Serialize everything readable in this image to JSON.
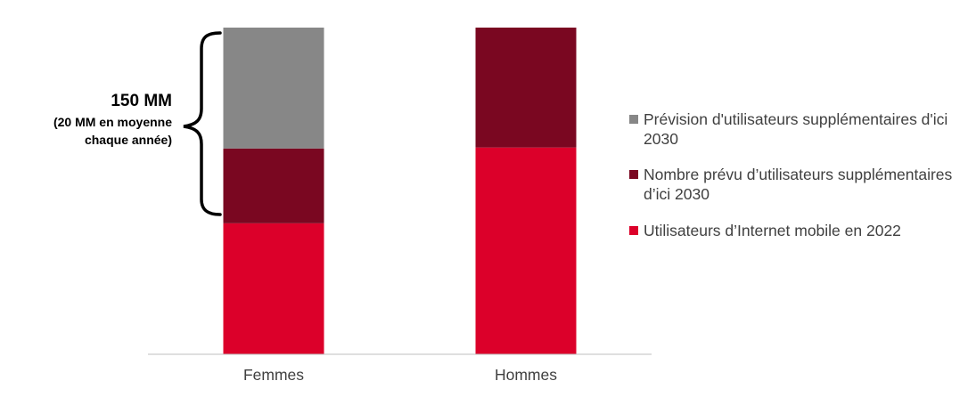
{
  "chart_data": {
    "type": "bar",
    "stacked": true,
    "categories": [
      "Femmes",
      "Hommes"
    ],
    "series": [
      {
        "name": "Utilisateurs d’Internet mobile en 2022",
        "color": "#dc002a",
        "values": [
          40.1,
          63.3
        ]
      },
      {
        "name": "Nombre prévu d’utilisateurs supplémentaires d’ici 2030",
        "color": "#7a0721",
        "values": [
          22.9,
          36.7
        ]
      },
      {
        "name": "Prévision d'utilisateurs supplémentaires d'ici 2030",
        "color": "#878787",
        "values": [
          37.0,
          0
        ]
      }
    ],
    "ylim": [
      0,
      100
    ],
    "grid": false,
    "legend_position": "right",
    "annotation": {
      "title": "150 MM",
      "subtitle_line1": "(20 MM en moyenne",
      "subtitle_line2": "chaque année)"
    }
  }
}
